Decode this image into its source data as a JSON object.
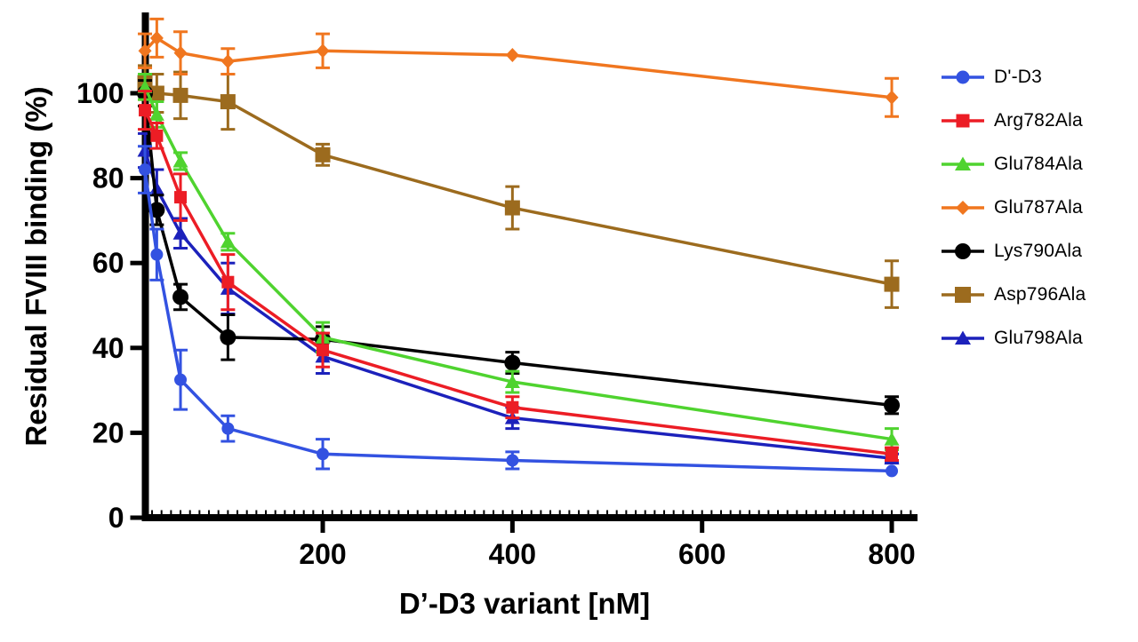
{
  "figure": {
    "background": "#ffffff",
    "text_color": "#000000",
    "axis_color": "#000000"
  },
  "chart_data": {
    "type": "line",
    "title": "",
    "xlabel": "D’-D3 variant [nM]",
    "ylabel": "Residual FVIII binding (%)",
    "x": [
      12.5,
      25,
      50,
      100,
      200,
      400,
      800
    ],
    "xticks": [
      200,
      400,
      600,
      800
    ],
    "yticks": [
      0,
      20,
      40,
      60,
      80,
      100
    ],
    "xlim": [
      0,
      830
    ],
    "ylim": [
      0,
      118
    ],
    "grid": false,
    "error_bars": true,
    "legend_position": "right",
    "x_minor_tick_step": 10,
    "series": [
      {
        "name": "D'-D3",
        "marker": "circle",
        "color": "#3352e1",
        "values": [
          82,
          62,
          32.5,
          21,
          15,
          13.5,
          11
        ],
        "errors": [
          5.5,
          6,
          7,
          3,
          3.5,
          2,
          0
        ]
      },
      {
        "name": "Arg782Ala",
        "marker": "square",
        "color": "#ec1d25",
        "values": [
          96,
          90,
          75.5,
          55.5,
          39.5,
          26,
          15
        ],
        "errors": [
          4.5,
          3,
          5.5,
          6.5,
          4,
          2.5,
          1.5
        ]
      },
      {
        "name": "Glu784Ala",
        "marker": "triangle",
        "color": "#4fd32f",
        "values": [
          101.5,
          95,
          84,
          65,
          42.5,
          32,
          18.5
        ],
        "errors": [
          3,
          3,
          2,
          2,
          3.5,
          2.5,
          2.5
        ]
      },
      {
        "name": "Glu787Ala",
        "marker": "diamond",
        "color": "#f0761f",
        "values": [
          110,
          113,
          109.5,
          107.5,
          110,
          109,
          99
        ],
        "errors": [
          4,
          4.5,
          5,
          3,
          4,
          0,
          4.5
        ]
      },
      {
        "name": "Lys790Ala",
        "marker": "circle-large",
        "color": "#000000",
        "values": [
          100,
          72.5,
          52,
          42.5,
          42,
          36.5,
          26.5
        ],
        "errors": [
          3,
          3.5,
          3,
          5.3,
          3,
          2.5,
          2
        ]
      },
      {
        "name": "Asp796Ala",
        "marker": "square-large",
        "color": "#9c6b1e",
        "values": [
          102.5,
          100,
          99.5,
          98,
          85.5,
          73,
          55
        ],
        "errors": [
          4,
          4.5,
          5.5,
          6.5,
          2.5,
          5,
          5.5
        ]
      },
      {
        "name": "Glu798Ala",
        "marker": "triangle",
        "color": "#1c21bb",
        "values": [
          86.5,
          77.5,
          67,
          54,
          38,
          23.5,
          14
        ],
        "errors": [
          4,
          4.5,
          3.5,
          6,
          4,
          2.5,
          1
        ]
      }
    ]
  }
}
